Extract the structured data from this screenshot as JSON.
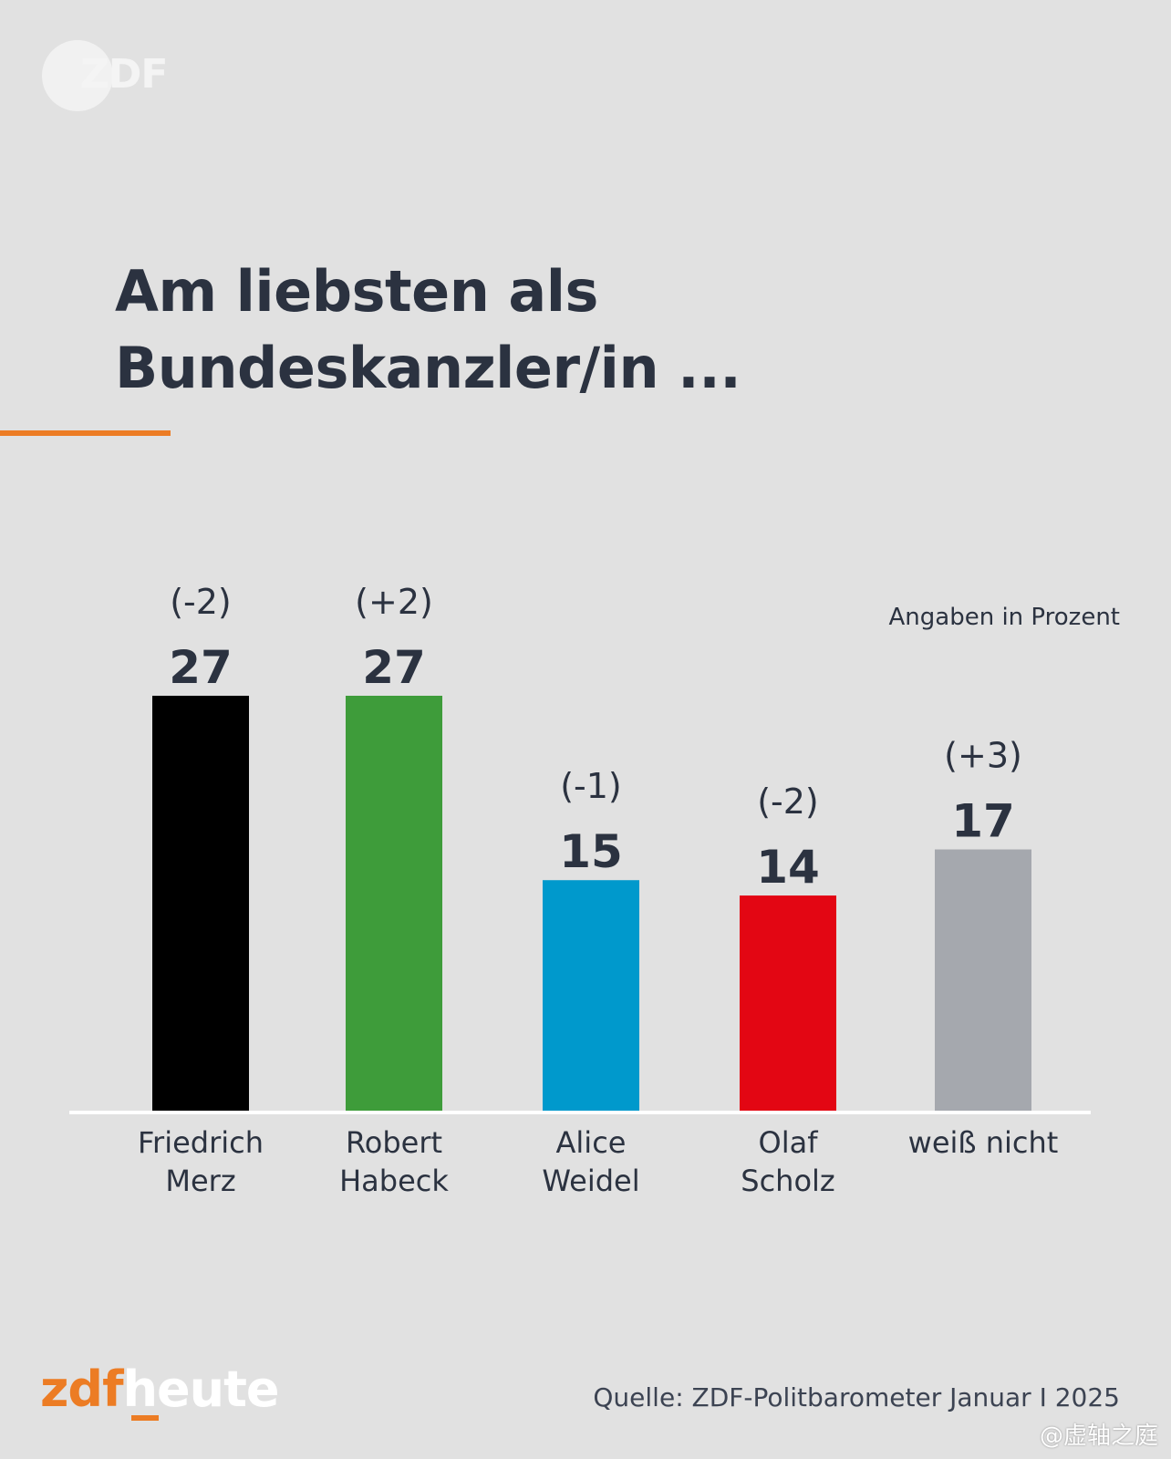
{
  "brand": {
    "top_logo_text": "ZDF",
    "footer_logo_zdf": "zdf",
    "footer_logo_heute": "heute",
    "accent_color": "#ec7c24"
  },
  "title_lines": [
    "Am liebsten als",
    "Bundeskanzler/in ..."
  ],
  "unit_note": "Angaben in Prozent",
  "source": "Quelle: ZDF-Politbarometer Januar I 2025",
  "watermark": "@虚轴之庭",
  "chart_data": {
    "type": "bar",
    "categories": [
      [
        "Friedrich",
        "Merz"
      ],
      [
        "Robert",
        "Habeck"
      ],
      [
        "Alice",
        "Weidel"
      ],
      [
        "Olaf",
        "Scholz"
      ],
      [
        "weiß nicht"
      ]
    ],
    "values": [
      27,
      27,
      15,
      14,
      17
    ],
    "changes": [
      "(-2)",
      "(+2)",
      "(-1)",
      "(-2)",
      "(+3)"
    ],
    "colors": [
      "#000000",
      "#3e9c3a",
      "#0099cc",
      "#e30613",
      "#a5a8ae"
    ],
    "title": "Am liebsten als Bundeskanzler/in ...",
    "ylabel": "Angaben in Prozent",
    "ylim": [
      0,
      27
    ]
  }
}
